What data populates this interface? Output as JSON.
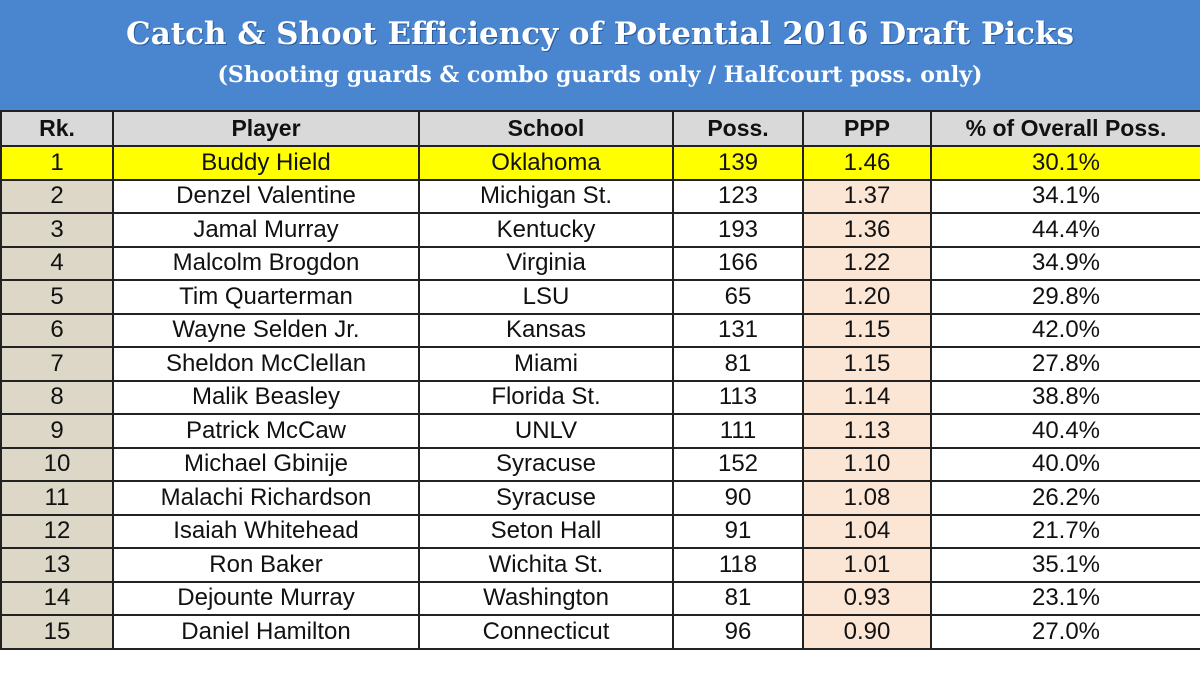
{
  "title": "Catch & Shoot Efficiency of Potential 2016 Draft Picks",
  "subtitle": "(Shooting guards & combo guards only / Halfcourt poss. only)",
  "colors": {
    "banner": "#4a86d0",
    "highlight": "#ffff00",
    "rank_column": "#dcd7c6",
    "ppp_column": "#fbe5d5",
    "header_row": "#d9d9d9"
  },
  "chart_data": {
    "type": "table",
    "title": "Catch & Shoot Efficiency of Potential 2016 Draft Picks",
    "subtitle": "(Shooting guards & combo guards only / Halfcourt poss. only)",
    "columns": [
      "Rk.",
      "Player",
      "School",
      "Poss.",
      "PPP",
      "% of Overall Poss."
    ],
    "highlighted_row": 1,
    "rows": [
      [
        "1",
        "Buddy Hield",
        "Oklahoma",
        "139",
        "1.46",
        "30.1%"
      ],
      [
        "2",
        "Denzel Valentine",
        "Michigan St.",
        "123",
        "1.37",
        "34.1%"
      ],
      [
        "3",
        "Jamal Murray",
        "Kentucky",
        "193",
        "1.36",
        "44.4%"
      ],
      [
        "4",
        "Malcolm Brogdon",
        "Virginia",
        "166",
        "1.22",
        "34.9%"
      ],
      [
        "5",
        "Tim Quarterman",
        "LSU",
        "65",
        "1.20",
        "29.8%"
      ],
      [
        "6",
        "Wayne Selden Jr.",
        "Kansas",
        "131",
        "1.15",
        "42.0%"
      ],
      [
        "7",
        "Sheldon McClellan",
        "Miami",
        "81",
        "1.15",
        "27.8%"
      ],
      [
        "8",
        "Malik Beasley",
        "Florida St.",
        "113",
        "1.14",
        "38.8%"
      ],
      [
        "9",
        "Patrick McCaw",
        "UNLV",
        "111",
        "1.13",
        "40.4%"
      ],
      [
        "10",
        "Michael Gbinije",
        "Syracuse",
        "152",
        "1.10",
        "40.0%"
      ],
      [
        "11",
        "Malachi Richardson",
        "Syracuse",
        "90",
        "1.08",
        "26.2%"
      ],
      [
        "12",
        "Isaiah Whitehead",
        "Seton Hall",
        "91",
        "1.04",
        "21.7%"
      ],
      [
        "13",
        "Ron Baker",
        "Wichita St.",
        "118",
        "1.01",
        "35.1%"
      ],
      [
        "14",
        "Dejounte Murray",
        "Washington",
        "81",
        "0.93",
        "23.1%"
      ],
      [
        "15",
        "Daniel Hamilton",
        "Connecticut",
        "96",
        "0.90",
        "27.0%"
      ]
    ]
  }
}
